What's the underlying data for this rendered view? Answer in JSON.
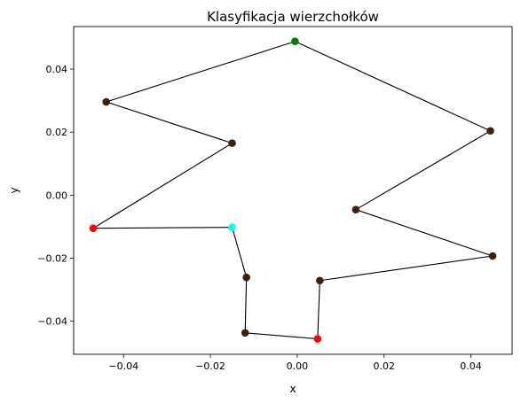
{
  "chart_data": {
    "type": "line",
    "title": "Klasyfikacja wierzchołków",
    "xlabel": "x",
    "ylabel": "y",
    "xlim": [
      -0.0515,
      0.0495
    ],
    "ylim": [
      -0.0505,
      0.0535
    ],
    "x_ticks": [
      -0.04,
      -0.02,
      0.0,
      0.02,
      0.04
    ],
    "x_tick_labels": [
      "−0.04",
      "−0.02",
      "0.00",
      "0.02",
      "0.04"
    ],
    "y_ticks": [
      -0.04,
      -0.02,
      0.0,
      0.02,
      0.04
    ],
    "y_tick_labels": [
      "−0.04",
      "−0.02",
      "0.00",
      "0.02",
      "0.04"
    ],
    "grid": false,
    "line_color": "#000000",
    "closed": true,
    "vertex_colors": {
      "green": "#008000",
      "brown": "#3b2210",
      "red": "#ff0000",
      "cyan": "#00ffff"
    },
    "vertices": [
      {
        "x": -0.0005,
        "y": 0.0488,
        "color": "green"
      },
      {
        "x": 0.0445,
        "y": 0.0204,
        "color": "brown"
      },
      {
        "x": 0.0135,
        "y": -0.0046,
        "color": "brown"
      },
      {
        "x": 0.045,
        "y": -0.0193,
        "color": "brown"
      },
      {
        "x": 0.0052,
        "y": -0.0271,
        "color": "brown"
      },
      {
        "x": 0.0047,
        "y": -0.0456,
        "color": "red"
      },
      {
        "x": -0.012,
        "y": -0.0437,
        "color": "brown"
      },
      {
        "x": -0.0117,
        "y": -0.0261,
        "color": "brown"
      },
      {
        "x": -0.015,
        "y": -0.0102,
        "color": "cyan"
      },
      {
        "x": -0.047,
        "y": -0.0105,
        "color": "red"
      },
      {
        "x": -0.015,
        "y": 0.0165,
        "color": "brown"
      },
      {
        "x": -0.044,
        "y": 0.0296,
        "color": "brown"
      }
    ]
  }
}
